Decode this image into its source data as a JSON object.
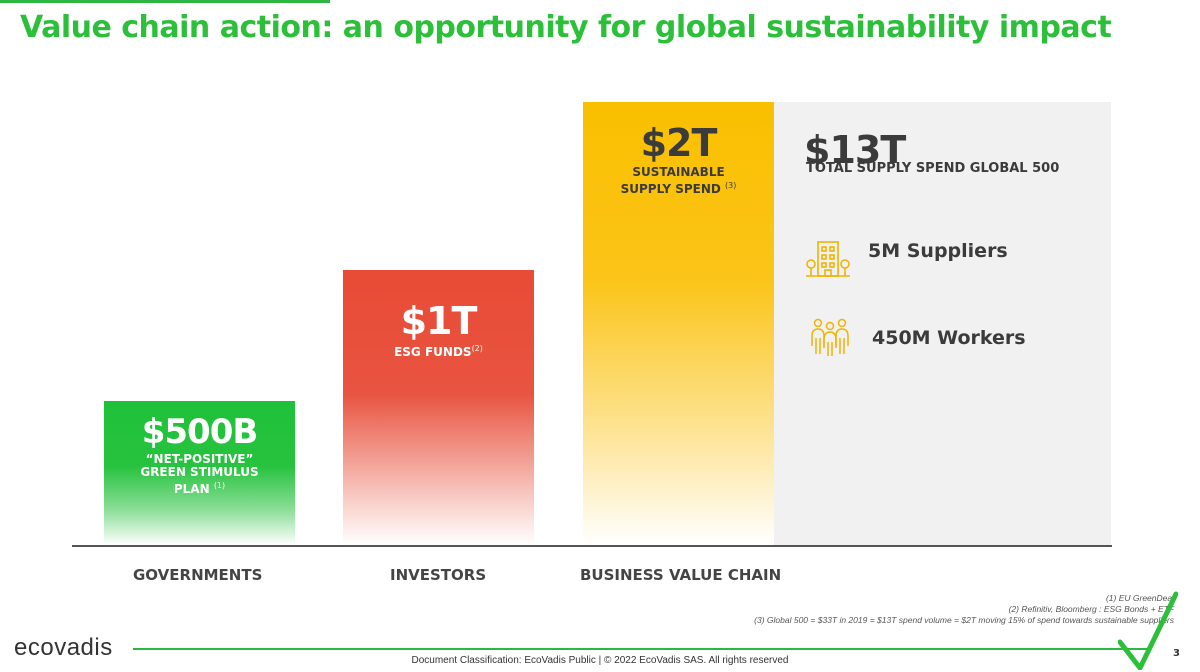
{
  "title": "Value chain action: an opportunity for global sustainability impact",
  "bars": [
    {
      "amount": "$500B",
      "label_lines": [
        "“NET-POSITIVE”",
        "GREEN STIMULUS",
        "PLAN"
      ],
      "note": "(1)",
      "category": "GOVERNMENTS",
      "color": "#27c23f"
    },
    {
      "amount": "$1T",
      "label_lines": [
        "ESG FUNDS"
      ],
      "note": "(2)",
      "category": "INVESTORS",
      "color": "#e85440"
    },
    {
      "amount": "$2T",
      "label_lines": [
        "SUSTAINABLE",
        "SUPPLY SPEND"
      ],
      "note": "(3)",
      "category": "BUSINESS VALUE CHAIN",
      "color": "#fbc418"
    }
  ],
  "total": {
    "amount": "$13T",
    "label": "TOTAL SUPPLY SPEND GLOBAL 500",
    "stats": [
      {
        "icon": "building-icon",
        "text": "5M Suppliers"
      },
      {
        "icon": "workers-icon",
        "text": "450M Workers"
      }
    ]
  },
  "footnotes": [
    "(1) EU GreenDeal",
    "(2) Refinitiv, Bloomberg : ESG Bonds + ETF",
    "(3) Global 500 = $33T in 2019 = $13T spend volume = $2T moving 15% of spend towards sustainable suppliers"
  ],
  "logo": "ecovadis",
  "footer_text": "Document Classification: EcoVadis Public | © 2022 EcoVadis SAS. All rights reserved",
  "page_number": "3",
  "colors": {
    "brand_green": "#2bbf3a",
    "icon_yellow": "#f0b400"
  }
}
